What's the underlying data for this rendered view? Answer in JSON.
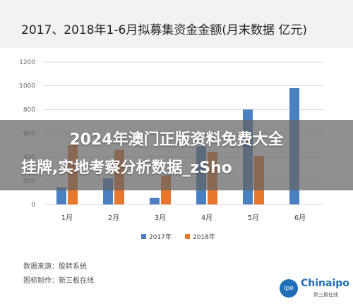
{
  "overlay": {
    "line1": "2024年澳门正版资料免费大全",
    "line2": "挂牌,实地考察分析数据_zSho"
  },
  "footer": {
    "source": "数据来源：股转系统",
    "maker": "图标制作：新三板在线"
  },
  "logo": {
    "circle_text": "ipo",
    "brand": "Chinaipo",
    "sub": "新三板在线"
  },
  "colors": {
    "series_2017": "#4a7fc1",
    "series_2018": "#e8772e",
    "grid": "#d9d9d9"
  },
  "chart_data": {
    "type": "bar",
    "title": "2017、2018年1-6月拟募集资金金额(月末数据 亿元)",
    "categories": [
      "1月",
      "2月",
      "3月",
      "4月",
      "5月",
      "6月"
    ],
    "series": [
      {
        "name": "2017年",
        "values": [
          145,
          220,
          55,
          490,
          800,
          980
        ]
      },
      {
        "name": "2018年",
        "values": [
          500,
          460,
          245,
          440,
          410,
          0
        ]
      }
    ],
    "y_ticks": [
      "0",
      "200",
      "400",
      "600",
      "800",
      "1000",
      "1200"
    ],
    "ylim": [
      0,
      1200
    ],
    "grid": true,
    "legend_position": "bottom"
  }
}
